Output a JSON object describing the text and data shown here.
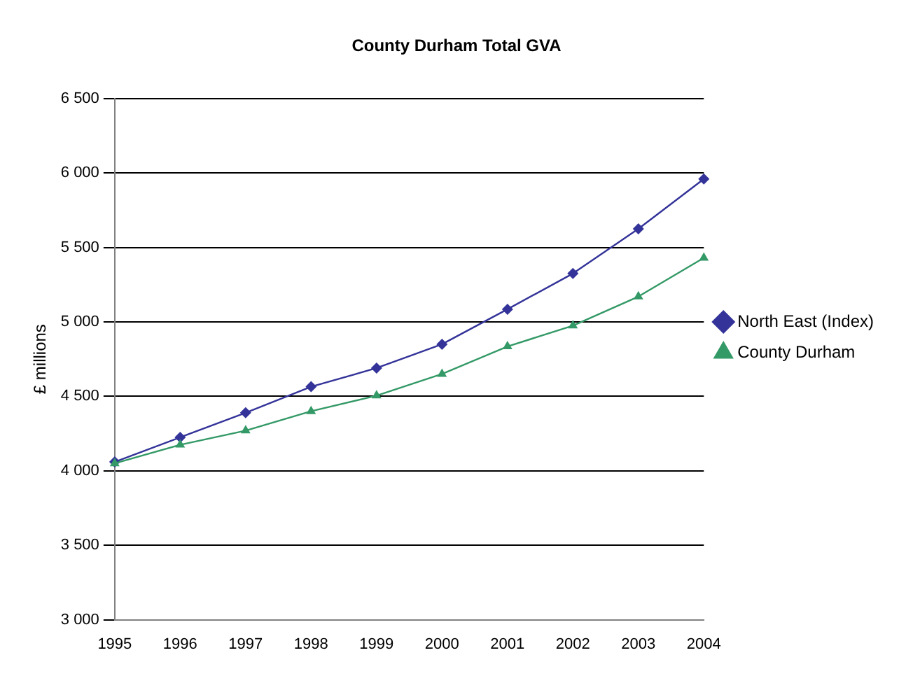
{
  "chart_data": {
    "type": "line",
    "title": "County Durham Total GVA",
    "ylabel": "£ millions",
    "categories": [
      "1995",
      "1996",
      "1997",
      "1998",
      "1999",
      "2000",
      "2001",
      "2002",
      "2003",
      "2004"
    ],
    "series": [
      {
        "name": "North East (Index)",
        "color": "#333399",
        "marker": "diamond",
        "values": [
          4060,
          4225,
          4390,
          4565,
          4690,
          4850,
          5085,
          5325,
          5625,
          5960
        ]
      },
      {
        "name": "County Durham",
        "color": "#339966",
        "marker": "triangle",
        "values": [
          4050,
          4175,
          4270,
          4400,
          4505,
          4650,
          4835,
          4975,
          5170,
          5430
        ]
      }
    ],
    "ylim": [
      3000,
      6500
    ],
    "yticks": [
      {
        "value": 3000,
        "label": "3 000"
      },
      {
        "value": 3500,
        "label": "3 500"
      },
      {
        "value": 4000,
        "label": "4 000"
      },
      {
        "value": 4500,
        "label": "4 500"
      },
      {
        "value": 5000,
        "label": "5 000"
      },
      {
        "value": 5500,
        "label": "5 500"
      },
      {
        "value": 6000,
        "label": "6 000"
      },
      {
        "value": 6500,
        "label": "6 500"
      }
    ],
    "grid": "y",
    "legend": "right",
    "line_style": "solid"
  }
}
